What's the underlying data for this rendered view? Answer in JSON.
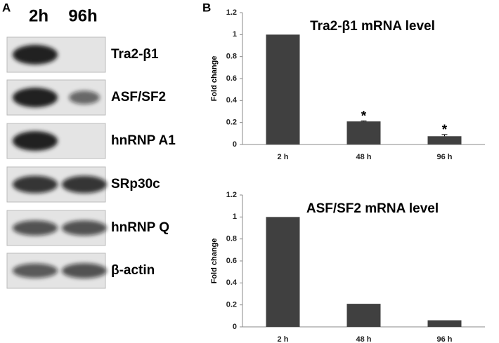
{
  "panel_a": {
    "label": "A",
    "lanes": [
      "2h",
      "96h"
    ],
    "rows": [
      "Tra2-β1",
      "ASF/SF2",
      "hnRNP A1",
      "SRp30c",
      "hnRNP Q",
      "β-actin"
    ]
  },
  "panel_b": {
    "label": "B"
  },
  "chart_data": [
    {
      "type": "bar",
      "title": "Tra2-β1 mRNA level",
      "ylabel": "Fold change",
      "categories": [
        "2 h",
        "48 h",
        "96 h"
      ],
      "values": [
        1,
        0.21,
        0.075
      ],
      "errors": [
        null,
        0.005,
        0.015
      ],
      "significance": [
        null,
        "*",
        "*"
      ],
      "color": "#404040",
      "ylim": [
        0,
        1.2
      ],
      "yticks": [
        0,
        0.2,
        0.4,
        0.6,
        0.8,
        1,
        1.2
      ]
    },
    {
      "type": "bar",
      "title": "ASF/SF2 mRNA level",
      "ylabel": "Fold change",
      "categories": [
        "2 h",
        "48 h",
        "96 h"
      ],
      "values": [
        1,
        0.21,
        0.06
      ],
      "color": "#404040",
      "ylim": [
        0,
        1.2
      ],
      "yticks": [
        0,
        0.2,
        0.4,
        0.6,
        0.8,
        1,
        1.2
      ]
    }
  ]
}
